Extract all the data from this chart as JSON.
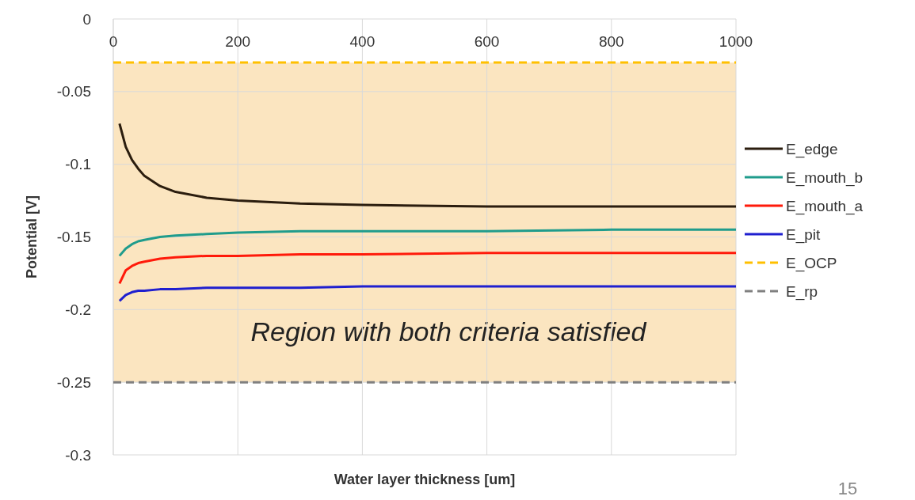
{
  "chart_data": {
    "type": "line",
    "xlabel": "Water layer thickness [um]",
    "ylabel": "Potential [V]",
    "xlim": [
      0,
      1000
    ],
    "xticks": [
      0,
      200,
      400,
      600,
      800,
      1000
    ],
    "ylim": [
      -0.3,
      0
    ],
    "yticks": [
      -0.3,
      -0.25,
      -0.2,
      -0.15,
      -0.1,
      -0.05,
      0
    ],
    "grid": true,
    "legend": "right",
    "line_style": "solid",
    "x": [
      10,
      20,
      30,
      40,
      50,
      75,
      100,
      150,
      200,
      300,
      400,
      600,
      800,
      1000
    ],
    "series": [
      {
        "name": "E_edge",
        "color": "#2b1d0e",
        "values": [
          -0.072,
          -0.088,
          -0.097,
          -0.103,
          -0.108,
          -0.115,
          -0.119,
          -0.123,
          -0.125,
          -0.127,
          -0.128,
          -0.129,
          -0.129,
          -0.129
        ]
      },
      {
        "name": "E_mouth_b",
        "color": "#1f9c8c",
        "values": [
          -0.163,
          -0.158,
          -0.155,
          -0.153,
          -0.152,
          -0.15,
          -0.149,
          -0.148,
          -0.147,
          -0.146,
          -0.146,
          -0.146,
          -0.145,
          -0.145
        ]
      },
      {
        "name": "E_mouth_a",
        "color": "#ff1a0a",
        "values": [
          -0.182,
          -0.173,
          -0.17,
          -0.168,
          -0.167,
          -0.165,
          -0.164,
          -0.163,
          -0.163,
          -0.162,
          -0.162,
          -0.161,
          -0.161,
          -0.161
        ]
      },
      {
        "name": "E_pit",
        "color": "#1f1fcf",
        "values": [
          -0.194,
          -0.19,
          -0.188,
          -0.187,
          -0.187,
          -0.186,
          -0.186,
          -0.185,
          -0.185,
          -0.185,
          -0.184,
          -0.184,
          -0.184,
          -0.184
        ]
      }
    ],
    "ref_lines": [
      {
        "axis": "y",
        "value": -0.03,
        "label": "E_OCP",
        "color": "#ffc000",
        "line_style": "dashed"
      },
      {
        "axis": "y",
        "value": -0.25,
        "label": "E_rp",
        "color": "#808080",
        "line_style": "dashed"
      }
    ],
    "bands": [
      {
        "axis": "y",
        "from": -0.25,
        "to": -0.03,
        "label": "Region with both criteria satisfied",
        "color": "#fbe5c0"
      }
    ],
    "annotations": [
      "15"
    ]
  }
}
